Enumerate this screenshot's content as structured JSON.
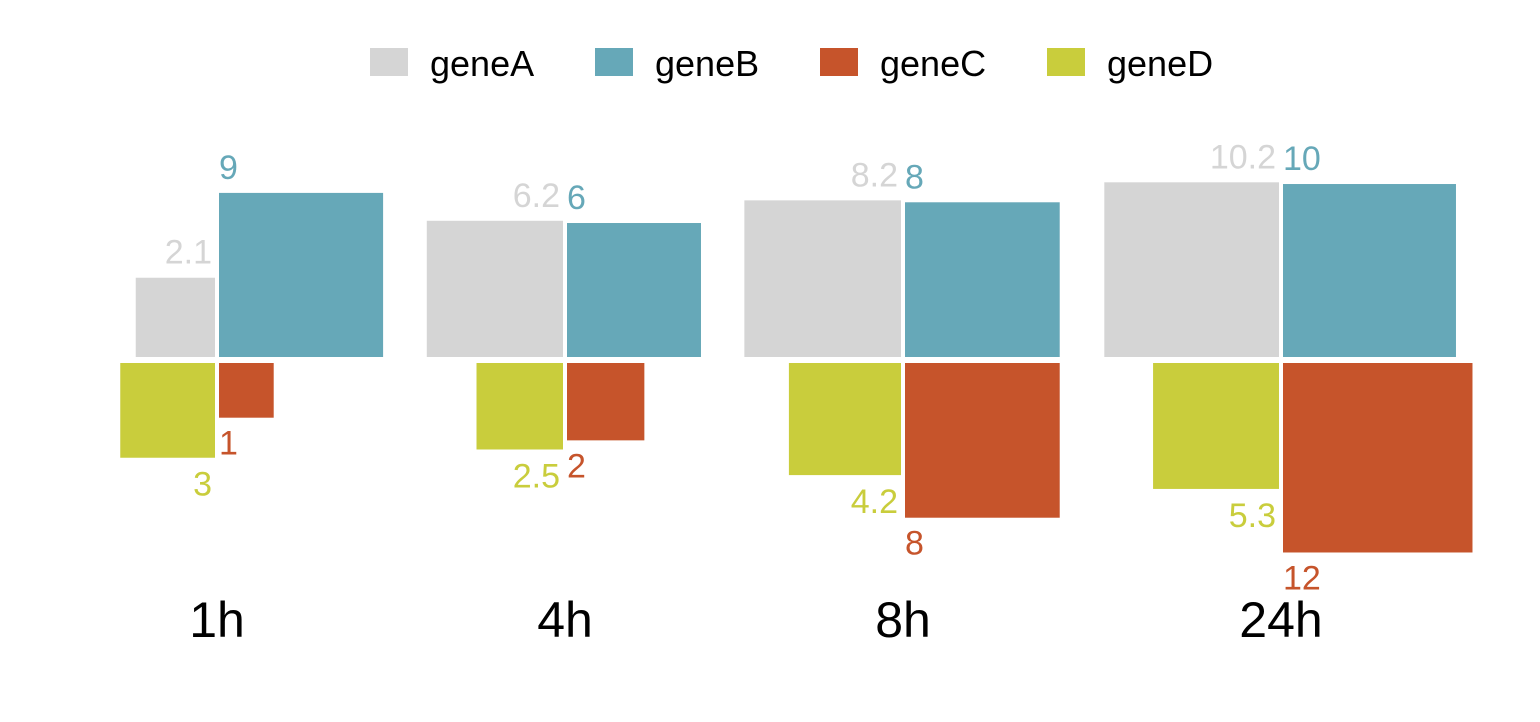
{
  "chart_data": {
    "type": "bar",
    "categories": [
      "1h",
      "4h",
      "8h",
      "24h"
    ],
    "series": [
      {
        "name": "geneA",
        "color": "#d5d5d5",
        "values": [
          2.1,
          6.2,
          8.2,
          10.2
        ],
        "labels": [
          "2.1",
          "6.2",
          "8.2",
          "10.2"
        ]
      },
      {
        "name": "geneB",
        "color": "#66a8b8",
        "values": [
          9,
          6,
          8,
          10
        ],
        "labels": [
          "9",
          "6",
          "8",
          "10"
        ]
      },
      {
        "name": "geneC",
        "color": "#c6542b",
        "values": [
          1,
          2,
          8,
          12
        ],
        "labels": [
          "1",
          "2",
          "8",
          "12"
        ]
      },
      {
        "name": "geneD",
        "color": "#c9cd3c",
        "values": [
          3,
          2.5,
          4.2,
          5.3
        ],
        "labels": [
          "3",
          "2.5",
          "4.2",
          "5.3"
        ]
      }
    ],
    "legend_position": "top",
    "grid": false,
    "title": "",
    "xlabel": "",
    "ylabel": ""
  }
}
